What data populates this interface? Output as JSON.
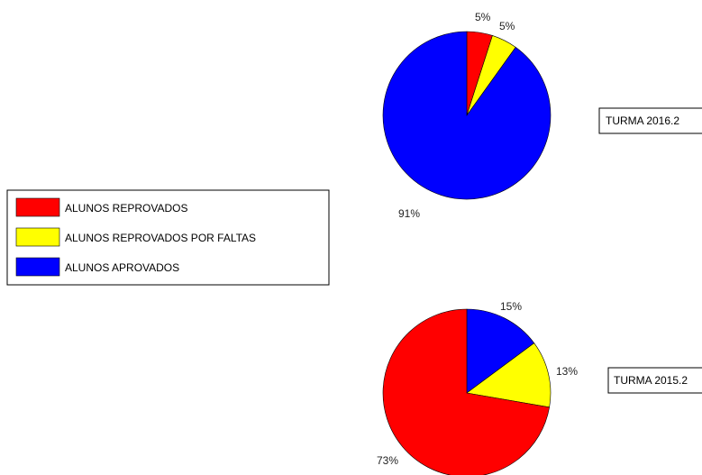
{
  "legend": {
    "items": [
      {
        "label": "ALUNOS REPROVADOS",
        "color": "#ff0000"
      },
      {
        "label": "ALUNOS REPROVADOS POR FALTAS",
        "color": "#ffff00"
      },
      {
        "label": "ALUNOS APROVADOS",
        "color": "#0000ff"
      }
    ]
  },
  "chart_data": [
    {
      "type": "pie",
      "label": "TURMA 2016.2",
      "slices": [
        {
          "name": "ALUNOS REPROVADOS",
          "value": 5,
          "label": "5%",
          "color": "#ff0000"
        },
        {
          "name": "ALUNOS REPROVADOS POR FALTAS",
          "value": 5,
          "label": "5%",
          "color": "#ffff00"
        },
        {
          "name": "ALUNOS APROVADOS",
          "value": 91,
          "label": "91%",
          "color": "#0000ff"
        }
      ]
    },
    {
      "type": "pie",
      "label": "TURMA 2015.2",
      "slices": [
        {
          "name": "ALUNOS APROVADOS",
          "value": 15,
          "label": "15%",
          "color": "#0000ff"
        },
        {
          "name": "ALUNOS REPROVADOS POR FALTAS",
          "value": 13,
          "label": "13%",
          "color": "#ffff00"
        },
        {
          "name": "ALUNOS REPROVADOS",
          "value": 73,
          "label": "73%",
          "color": "#ff0000"
        }
      ]
    }
  ]
}
